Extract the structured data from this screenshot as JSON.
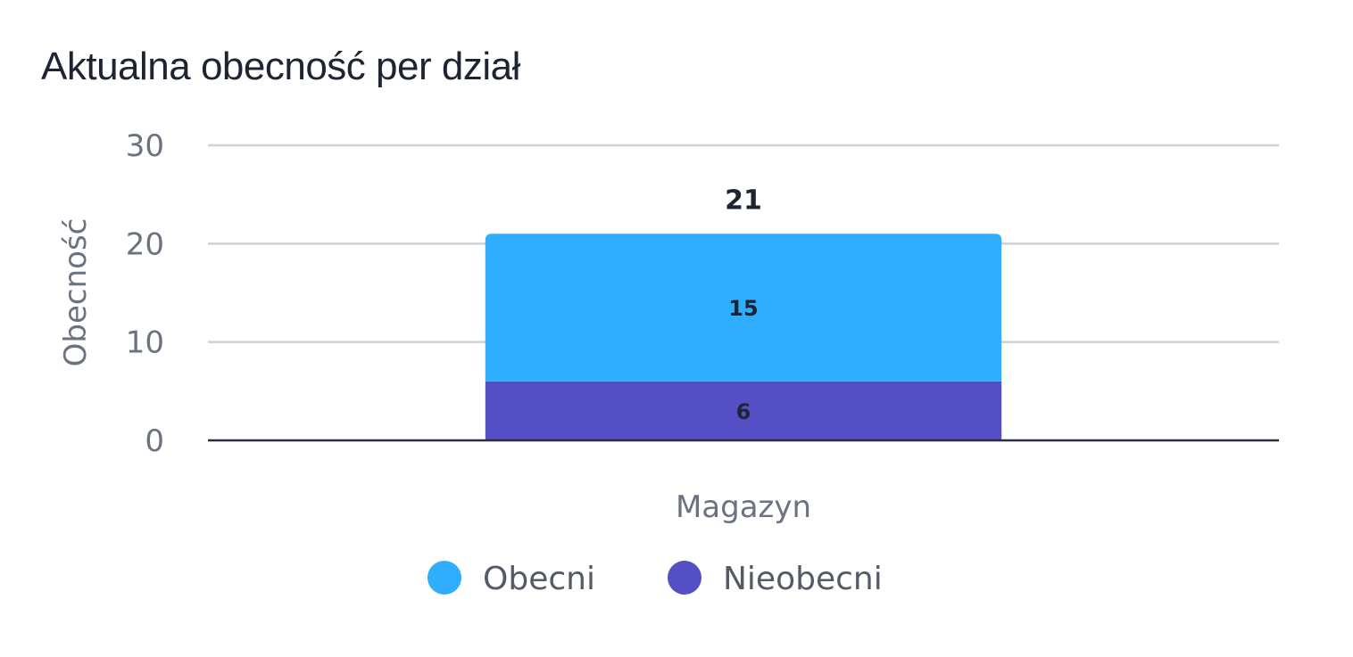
{
  "chart_data": {
    "type": "bar",
    "stacked": true,
    "title": "Aktualna obecność per dział",
    "xlabel": "",
    "ylabel": "Obecność",
    "ylim": [
      0,
      30
    ],
    "yticks": [
      0,
      10,
      20,
      30
    ],
    "categories": [
      "Magazyn"
    ],
    "series": [
      {
        "name": "Nieobecni",
        "values": [
          6
        ],
        "color": "#554fc6"
      },
      {
        "name": "Obecni",
        "values": [
          15
        ],
        "color": "#2eaefc"
      }
    ],
    "totals": [
      21
    ],
    "data_labels": true,
    "grid": true,
    "legend": "bottom"
  }
}
